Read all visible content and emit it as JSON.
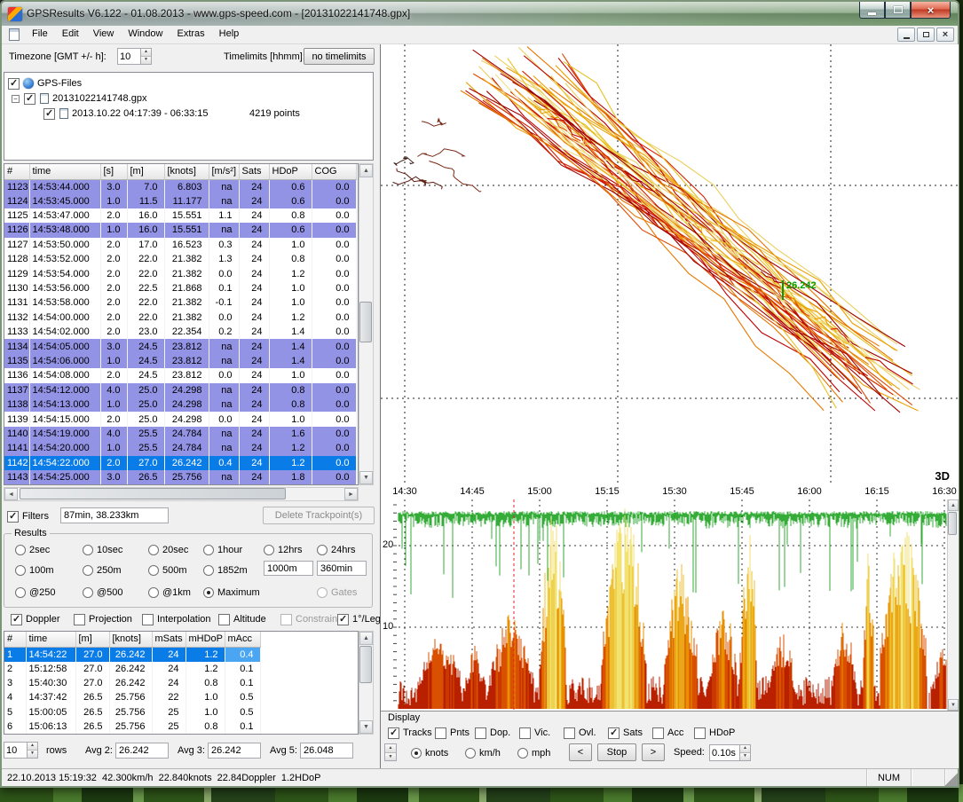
{
  "window": {
    "title": "GPSResults V6.122 - 01.08.2013 - www.gps-speed.com - [20131022141748.gpx]",
    "menu": [
      "File",
      "Edit",
      "View",
      "Window",
      "Extras",
      "Help"
    ]
  },
  "topbar": {
    "timezone_label": "Timezone [GMT +/- h]:",
    "timezone_value": "10",
    "timelimits_label": "Timelimits [hhmm]:",
    "timelimits_value": "no timelimits"
  },
  "tree": {
    "root_label": "GPS-Files",
    "file_label": "20131022141748.gpx",
    "track_label": "2013.10.22 04:17:39 - 06:33:15",
    "track_points": "4219 points"
  },
  "track_table": {
    "columns": [
      "#",
      "time",
      "[s]",
      "[m]",
      "[knots]",
      "[m/s²]",
      "Sats",
      "HDoP",
      "COG"
    ],
    "rows": [
      {
        "c": [
          "1123",
          "14:53:44.000",
          "3.0",
          "7.0",
          "6.803",
          "na",
          "24",
          "0.6",
          "0.0"
        ],
        "hl": "doppler"
      },
      {
        "c": [
          "1124",
          "14:53:45.000",
          "1.0",
          "11.5",
          "11.177",
          "na",
          "24",
          "0.6",
          "0.0"
        ],
        "hl": "doppler"
      },
      {
        "c": [
          "1125",
          "14:53:47.000",
          "2.0",
          "16.0",
          "15.551",
          "1.1",
          "24",
          "0.8",
          "0.0"
        ],
        "hl": "none"
      },
      {
        "c": [
          "1126",
          "14:53:48.000",
          "1.0",
          "16.0",
          "15.551",
          "na",
          "24",
          "0.6",
          "0.0"
        ],
        "hl": "doppler"
      },
      {
        "c": [
          "1127",
          "14:53:50.000",
          "2.0",
          "17.0",
          "16.523",
          "0.3",
          "24",
          "1.0",
          "0.0"
        ],
        "hl": "none"
      },
      {
        "c": [
          "1128",
          "14:53:52.000",
          "2.0",
          "22.0",
          "21.382",
          "1.3",
          "24",
          "0.8",
          "0.0"
        ],
        "hl": "none"
      },
      {
        "c": [
          "1129",
          "14:53:54.000",
          "2.0",
          "22.0",
          "21.382",
          "0.0",
          "24",
          "1.2",
          "0.0"
        ],
        "hl": "none"
      },
      {
        "c": [
          "1130",
          "14:53:56.000",
          "2.0",
          "22.5",
          "21.868",
          "0.1",
          "24",
          "1.0",
          "0.0"
        ],
        "hl": "none"
      },
      {
        "c": [
          "1131",
          "14:53:58.000",
          "2.0",
          "22.0",
          "21.382",
          "-0.1",
          "24",
          "1.0",
          "0.0"
        ],
        "hl": "none"
      },
      {
        "c": [
          "1132",
          "14:54:00.000",
          "2.0",
          "22.0",
          "21.382",
          "0.0",
          "24",
          "1.2",
          "0.0"
        ],
        "hl": "none"
      },
      {
        "c": [
          "1133",
          "14:54:02.000",
          "2.0",
          "23.0",
          "22.354",
          "0.2",
          "24",
          "1.4",
          "0.0"
        ],
        "hl": "none"
      },
      {
        "c": [
          "1134",
          "14:54:05.000",
          "3.0",
          "24.5",
          "23.812",
          "na",
          "24",
          "1.4",
          "0.0"
        ],
        "hl": "doppler"
      },
      {
        "c": [
          "1135",
          "14:54:06.000",
          "1.0",
          "24.5",
          "23.812",
          "na",
          "24",
          "1.4",
          "0.0"
        ],
        "hl": "doppler"
      },
      {
        "c": [
          "1136",
          "14:54:08.000",
          "2.0",
          "24.5",
          "23.812",
          "0.0",
          "24",
          "1.0",
          "0.0"
        ],
        "hl": "none"
      },
      {
        "c": [
          "1137",
          "14:54:12.000",
          "4.0",
          "25.0",
          "24.298",
          "na",
          "24",
          "0.8",
          "0.0"
        ],
        "hl": "doppler"
      },
      {
        "c": [
          "1138",
          "14:54:13.000",
          "1.0",
          "25.0",
          "24.298",
          "na",
          "24",
          "0.8",
          "0.0"
        ],
        "hl": "doppler"
      },
      {
        "c": [
          "1139",
          "14:54:15.000",
          "2.0",
          "25.0",
          "24.298",
          "0.0",
          "24",
          "1.0",
          "0.0"
        ],
        "hl": "none"
      },
      {
        "c": [
          "1140",
          "14:54:19.000",
          "4.0",
          "25.5",
          "24.784",
          "na",
          "24",
          "1.6",
          "0.0"
        ],
        "hl": "doppler"
      },
      {
        "c": [
          "1141",
          "14:54:20.000",
          "1.0",
          "25.5",
          "24.784",
          "na",
          "24",
          "1.2",
          "0.0"
        ],
        "hl": "doppler"
      },
      {
        "c": [
          "1142",
          "14:54:22.000",
          "2.0",
          "27.0",
          "26.242",
          "0.4",
          "24",
          "1.2",
          "0.0"
        ],
        "hl": "selected"
      },
      {
        "c": [
          "1143",
          "14:54:25.000",
          "3.0",
          "26.5",
          "25.756",
          "na",
          "24",
          "1.8",
          "0.0"
        ],
        "hl": "doppler"
      }
    ]
  },
  "filters": {
    "checkbox_label": "Filters",
    "value": "87min, 38.233km",
    "delete_button": "Delete Trackpoint(s)"
  },
  "results_group": {
    "title": "Results",
    "radio_rows": [
      [
        {
          "label": "2sec",
          "state": "off"
        },
        {
          "label": "10sec",
          "state": "off"
        },
        {
          "label": "20sec",
          "state": "off"
        },
        {
          "label": "1hour",
          "state": "off"
        },
        {
          "label": "12hrs",
          "state": "off"
        },
        {
          "label": "24hrs",
          "state": "off"
        }
      ],
      [
        {
          "label": "100m",
          "state": "off"
        },
        {
          "label": "250m",
          "state": "off"
        },
        {
          "label": "500m",
          "state": "off"
        },
        {
          "label": "1852m",
          "state": "off"
        }
      ],
      [
        {
          "label": "@250",
          "state": "off"
        },
        {
          "label": "@500",
          "state": "off"
        },
        {
          "label": "@1km",
          "state": "off"
        },
        {
          "label": "Maximum",
          "state": "on"
        },
        {
          "label": "Gates",
          "state": "disabled"
        }
      ]
    ],
    "distance_input": "1000m",
    "time_input": "360min"
  },
  "options": [
    {
      "label": "Doppler",
      "checked": true,
      "disabled": false
    },
    {
      "label": "Projection",
      "checked": false,
      "disabled": false
    },
    {
      "label": "Interpolation",
      "checked": false,
      "disabled": false
    },
    {
      "label": "Altitude",
      "checked": false,
      "disabled": false
    },
    {
      "label": "Constrain",
      "checked": false,
      "disabled": true
    },
    {
      "label": "1°/Leg",
      "checked": true,
      "disabled": false
    }
  ],
  "results_table": {
    "columns": [
      "#",
      "time",
      "[m]",
      "[knots]",
      "mSats",
      "mHDoP",
      "mAcc"
    ],
    "rows": [
      {
        "c": [
          "1",
          "14:54:22",
          "27.0",
          "26.242",
          "24",
          "1.2",
          "0.4"
        ],
        "hl": "selected",
        "cursor_col": 6
      },
      {
        "c": [
          "2",
          "15:12:58",
          "27.0",
          "26.242",
          "24",
          "1.2",
          "0.1"
        ],
        "hl": "none"
      },
      {
        "c": [
          "3",
          "15:40:30",
          "27.0",
          "26.242",
          "24",
          "0.8",
          "0.1"
        ],
        "hl": "none"
      },
      {
        "c": [
          "4",
          "14:37:42",
          "26.5",
          "25.756",
          "22",
          "1.0",
          "0.5"
        ],
        "hl": "none"
      },
      {
        "c": [
          "5",
          "15:00:05",
          "26.5",
          "25.756",
          "25",
          "1.0",
          "0.5"
        ],
        "hl": "none"
      },
      {
        "c": [
          "6",
          "15:06:13",
          "26.5",
          "25.756",
          "25",
          "0.8",
          "0.1"
        ],
        "hl": "none"
      }
    ]
  },
  "averages": {
    "rows_value": "10",
    "rows_label": "rows",
    "avg2_label": "Avg 2:",
    "avg2_value": "26.242",
    "avg3_label": "Avg 3:",
    "avg3_value": "26.242",
    "avg5_label": "Avg 5:",
    "avg5_value": "26.048"
  },
  "plot": {
    "annotation": "26.242",
    "mode_label": "3D"
  },
  "speed_chart": {
    "time_ticks": [
      "14:30",
      "14:45",
      "15:00",
      "15:15",
      "15:30",
      "15:45",
      "16:00",
      "16:15",
      "16:30"
    ],
    "y_ticks": [
      "20",
      "10"
    ]
  },
  "display_panel": {
    "title": "Display",
    "checkboxes": [
      {
        "label": "Tracks",
        "checked": true
      },
      {
        "label": "Pnts",
        "checked": false
      },
      {
        "label": "Dop.",
        "checked": false
      },
      {
        "label": "Vic.",
        "checked": false
      },
      {
        "label": "Ovl.",
        "checked": false
      },
      {
        "label": "Sats",
        "checked": true
      },
      {
        "label": "Acc",
        "checked": false
      },
      {
        "label": "HDoP",
        "checked": false
      }
    ],
    "units": [
      {
        "label": "knots",
        "selected": true
      },
      {
        "label": "km/h",
        "selected": false
      },
      {
        "label": "mph",
        "selected": false
      }
    ],
    "prev_button": "<",
    "stop_button": "Stop",
    "next_button": ">",
    "speed_label": "Speed:",
    "speed_value": "0.10s"
  },
  "status_bar": {
    "info": "22.10.2013 15:19:32  42.300km/h  22.840knots  22.84Doppler  1.2HDoP",
    "num_label": "NUM"
  },
  "colors": {
    "selection": "#0a7ce8",
    "doppler_row": "#9393e6",
    "cursor_cell": "#4aa5f2",
    "annotation_green": "#00a000",
    "sats_green": "#1ea321",
    "cursor_line": "#e02020",
    "track_palette": [
      "#a00000",
      "#c00000",
      "#d42000",
      "#e04800",
      "#e87800",
      "#eca000",
      "#e8c020",
      "#ead060",
      "#f0e080"
    ],
    "speed_palette": [
      "#b82000",
      "#d85000",
      "#e89000",
      "#ecc030",
      "#f2e270"
    ]
  }
}
